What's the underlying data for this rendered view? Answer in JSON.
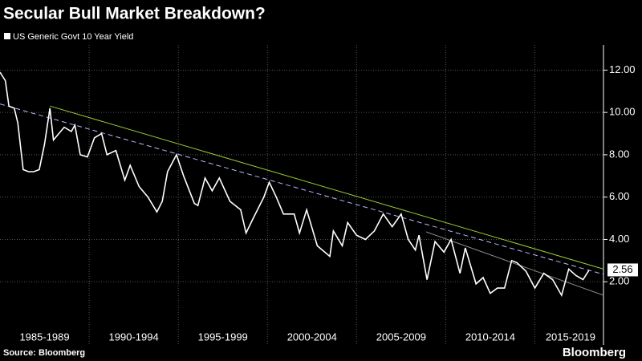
{
  "chart_data": {
    "type": "line",
    "title": "Secular Bull Market Breakdown?",
    "source": "Source: Bloomberg",
    "brand": "Bloomberg",
    "series": [
      {
        "name": "US Generic Govt 10 Year Yield",
        "color": "#ffffff",
        "x": [
          1985.0,
          1985.3,
          1985.5,
          1985.8,
          1986.0,
          1986.3,
          1986.6,
          1986.9,
          1987.2,
          1987.5,
          1987.8,
          1988.0,
          1988.3,
          1988.6,
          1989.0,
          1989.2,
          1989.5,
          1989.9,
          1990.3,
          1990.7,
          1991.0,
          1991.5,
          1992.0,
          1992.3,
          1992.8,
          1993.3,
          1993.8,
          1994.1,
          1994.4,
          1994.9,
          1995.3,
          1995.9,
          1996.1,
          1996.5,
          1996.9,
          1997.3,
          1997.9,
          1998.5,
          1998.8,
          1999.2,
          1999.8,
          2000.1,
          2000.5,
          2000.9,
          2001.5,
          2001.8,
          2002.2,
          2002.8,
          2003.5,
          2003.7,
          2004.2,
          2004.5,
          2005.0,
          2005.5,
          2006.0,
          2006.5,
          2007.0,
          2007.5,
          2007.9,
          2008.3,
          2008.5,
          2008.95,
          2009.4,
          2009.9,
          2010.3,
          2010.8,
          2011.1,
          2011.7,
          2012.1,
          2012.5,
          2012.9,
          2013.3,
          2013.7,
          2014.0,
          2014.5,
          2015.0,
          2015.5,
          2016.0,
          2016.5,
          2016.9,
          2017.3,
          2017.7,
          2018.05
        ],
        "values": [
          11.9,
          11.5,
          10.3,
          10.2,
          9.5,
          7.3,
          7.2,
          7.2,
          7.3,
          8.5,
          10.2,
          8.7,
          9.0,
          9.3,
          9.1,
          9.4,
          8.0,
          7.9,
          8.8,
          9.0,
          8.0,
          8.2,
          6.8,
          7.5,
          6.5,
          6.0,
          5.3,
          5.8,
          7.2,
          8.0,
          7.0,
          5.7,
          5.6,
          6.9,
          6.3,
          6.9,
          5.8,
          5.4,
          4.3,
          5.0,
          6.0,
          6.7,
          6.0,
          5.2,
          5.2,
          4.3,
          5.4,
          3.7,
          3.2,
          4.4,
          3.7,
          4.8,
          4.2,
          4.0,
          4.4,
          5.2,
          4.6,
          5.2,
          4.0,
          3.5,
          4.2,
          2.1,
          3.9,
          3.4,
          4.0,
          2.4,
          3.6,
          1.9,
          2.2,
          1.45,
          1.7,
          1.7,
          3.0,
          2.9,
          2.5,
          1.7,
          2.4,
          2.1,
          1.36,
          2.6,
          2.3,
          2.1,
          2.56
        ]
      }
    ],
    "trend_lines": [
      {
        "color": "#9acd32",
        "dash": false,
        "x": [
          1987.8,
          2018.85
        ],
        "values": [
          10.3,
          2.6
        ]
      },
      {
        "color": "#b8b8ff",
        "dash": true,
        "x": [
          1985.0,
          2018.85
        ],
        "values": [
          10.4,
          2.35
        ]
      },
      {
        "color": "#888888",
        "dash": false,
        "x": [
          2008.9,
          2018.85
        ],
        "values": [
          4.36,
          1.36
        ]
      }
    ],
    "xlim": [
      1985,
      2018.85
    ],
    "xticks": [
      {
        "value": 1987.5,
        "label": "1985-1989"
      },
      {
        "value": 1992.5,
        "label": "1990-1994"
      },
      {
        "value": 1997.5,
        "label": "1995-1999"
      },
      {
        "value": 2002.5,
        "label": "2000-2004"
      },
      {
        "value": 2007.5,
        "label": "2005-2009"
      },
      {
        "value": 2012.5,
        "label": "2010-2014"
      },
      {
        "value": 2017.0,
        "label": "2015-2019"
      }
    ],
    "xgrid_lines": [
      1990,
      1995,
      2000,
      2005,
      2010,
      2015
    ],
    "ylim": [
      0,
      13
    ],
    "yticks": [
      {
        "value": 2,
        "label": "2.00"
      },
      {
        "value": 4,
        "label": "4.00"
      },
      {
        "value": 6,
        "label": "6.00"
      },
      {
        "value": 8,
        "label": "8.00"
      },
      {
        "value": 10,
        "label": "10.00"
      },
      {
        "value": 12,
        "label": "12.00"
      }
    ],
    "grid": true,
    "y_axis_side": "right"
  }
}
